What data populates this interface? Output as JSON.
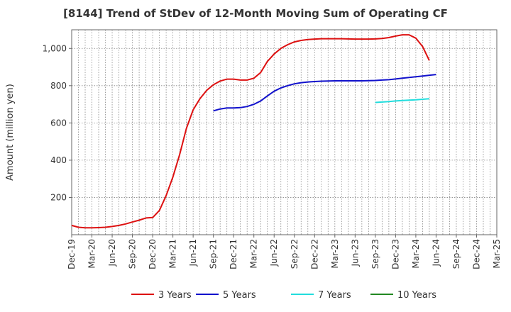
{
  "chart_data": {
    "type": "line",
    "title": "[8144]  Trend of StDev of 12-Month Moving Sum of Operating CF",
    "xlabel": "",
    "ylabel": "Amount (million yen)",
    "ylim": [
      0,
      1100
    ],
    "yticks": [
      200,
      400,
      600,
      800,
      1000
    ],
    "ytick_labels": [
      "200",
      "400",
      "600",
      "800",
      "1,000"
    ],
    "x_tick_labels": [
      "Dec-19",
      "Mar-20",
      "Jun-20",
      "Sep-20",
      "Dec-20",
      "Mar-21",
      "Jun-21",
      "Sep-21",
      "Dec-21",
      "Mar-22",
      "Jun-22",
      "Sep-22",
      "Dec-22",
      "Mar-23",
      "Jun-23",
      "Sep-23",
      "Dec-23",
      "Mar-24",
      "Jun-24",
      "Sep-24",
      "Dec-24",
      "Mar-25"
    ],
    "grid": true,
    "legend_position": "bottom",
    "series": [
      {
        "name": "3 Years",
        "color": "#dd1111",
        "start_index": 0,
        "values": [
          50,
          40,
          37,
          37,
          38,
          40,
          44,
          50,
          58,
          68,
          78,
          90,
          92,
          130,
          210,
          310,
          430,
          570,
          670,
          730,
          775,
          805,
          825,
          835,
          835,
          830,
          830,
          840,
          870,
          930,
          970,
          1000,
          1020,
          1035,
          1043,
          1048,
          1050,
          1052,
          1052,
          1052,
          1052,
          1051,
          1050,
          1050,
          1050,
          1051,
          1053,
          1058,
          1066,
          1073,
          1073,
          1055,
          1010,
          935
        ]
      },
      {
        "name": "5 Years",
        "color": "#1111cc",
        "start_index": 21,
        "values": [
          665,
          675,
          680,
          680,
          682,
          688,
          700,
          718,
          745,
          770,
          788,
          800,
          810,
          816,
          820,
          822,
          824,
          825,
          826,
          826,
          826,
          826,
          826,
          827,
          828,
          830,
          832,
          836,
          840,
          844,
          848,
          852,
          856,
          860
        ]
      },
      {
        "name": "7 Years",
        "color": "#22dddd",
        "start_index": 45,
        "values": [
          710,
          712,
          715,
          718,
          720,
          722,
          724,
          727,
          730
        ]
      },
      {
        "name": "10 Years",
        "color": "#228822",
        "start_index": 0,
        "values": []
      }
    ]
  }
}
